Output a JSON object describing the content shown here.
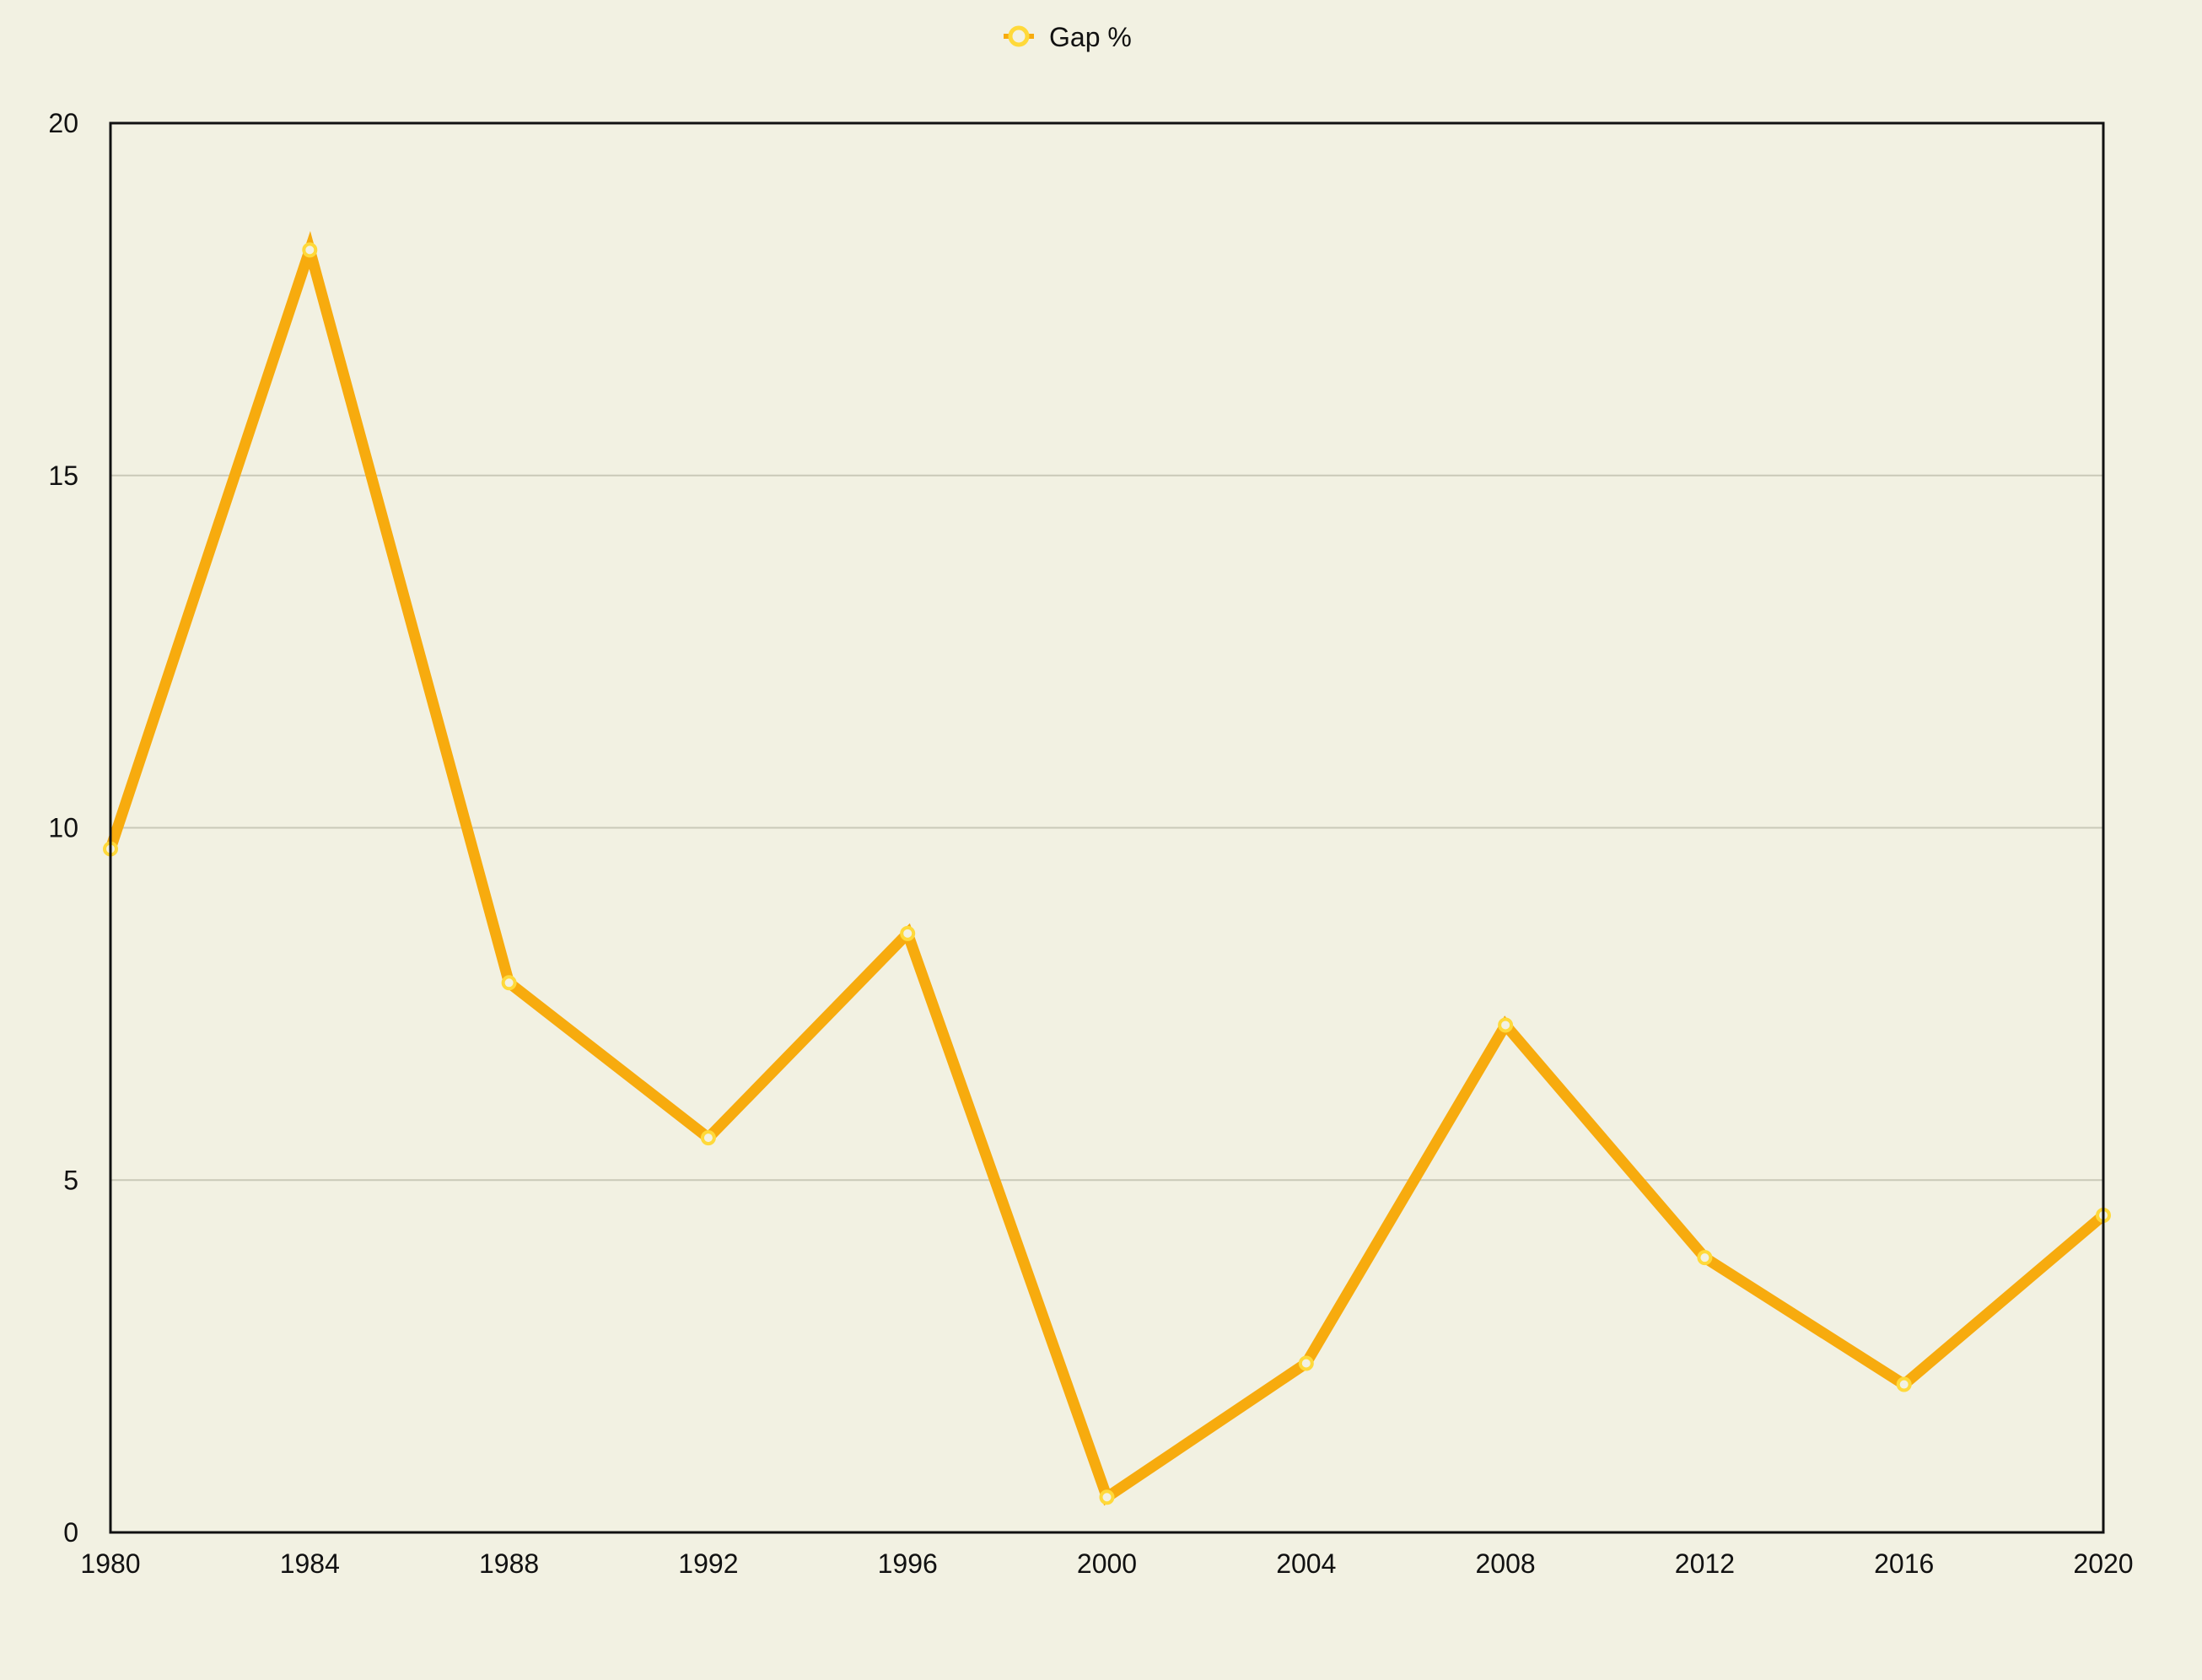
{
  "chart_data": {
    "type": "line",
    "x": [
      1980,
      1984,
      1988,
      1992,
      1996,
      2000,
      2004,
      2008,
      2012,
      2016,
      2020
    ],
    "series": [
      {
        "name": "Gap %",
        "values": [
          9.7,
          18.2,
          7.8,
          5.6,
          8.5,
          0.5,
          2.4,
          7.2,
          3.9,
          2.1,
          4.5
        ],
        "color": "#f7ab0e",
        "marker_color": "#ffd93a"
      }
    ],
    "xlim": [
      1980,
      2020
    ],
    "ylim": [
      0,
      20
    ],
    "x_ticks": [
      "1980",
      "1984",
      "1988",
      "1992",
      "1996",
      "2000",
      "2004",
      "2008",
      "2012",
      "2016",
      "2020"
    ],
    "y_ticks": [
      "0",
      "5",
      "10",
      "15",
      "20"
    ],
    "title": "",
    "xlabel": "",
    "ylabel": "",
    "grid": "horizontal",
    "legend_position": "top-center",
    "background": "#f2f1e2",
    "gridline_color": "#c9c9b8"
  }
}
